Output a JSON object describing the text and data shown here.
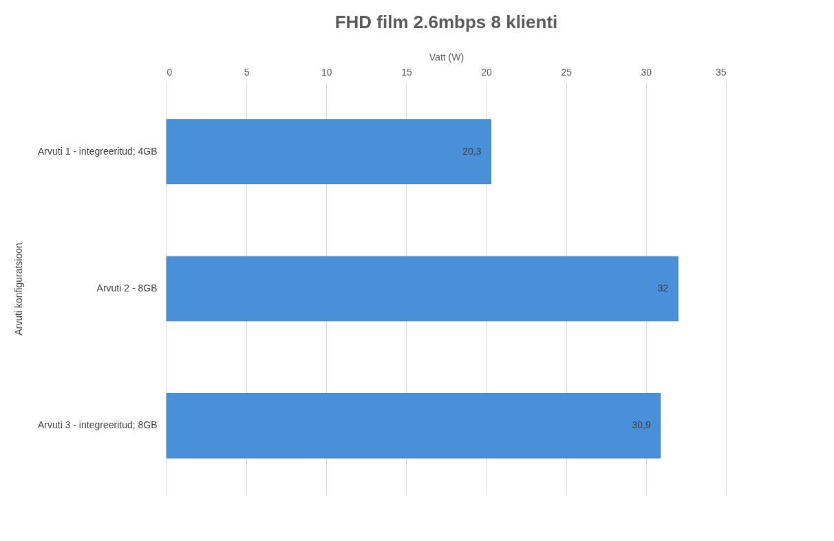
{
  "chart_data": {
    "type": "bar",
    "orientation": "horizontal",
    "title": "FHD film 2.6mbps 8 klienti",
    "xlabel": "Vatt (W)",
    "ylabel": "Arvuti konfiguratsioon",
    "categories": [
      "Arvuti 1 - integreeritud; 4GB",
      "Arvuti 2 - 8GB",
      "Arvuti 3 - integreeritud; 8GB"
    ],
    "values": [
      20.3,
      32,
      30.9
    ],
    "value_labels": [
      "20,3",
      "32",
      "30,9"
    ],
    "color": "#4a90d9",
    "xlim": [
      0,
      35
    ],
    "xticks": [
      0,
      5,
      10,
      15,
      20,
      25,
      30,
      35
    ],
    "grid": "x"
  }
}
